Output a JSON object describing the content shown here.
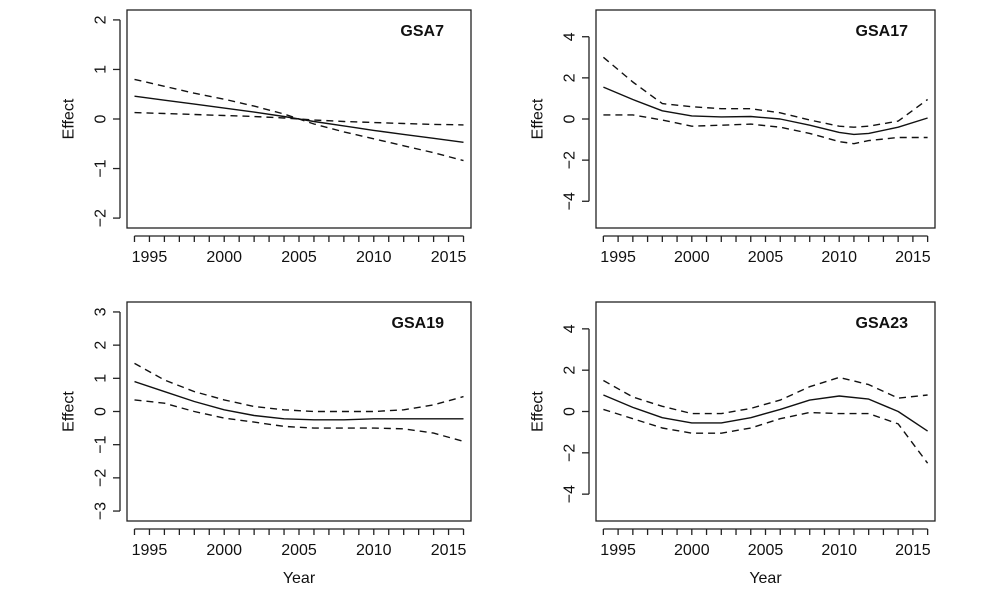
{
  "chart_data": [
    {
      "type": "line",
      "title": "GSA7",
      "xlabel": "",
      "ylabel": "Effect",
      "xlim": [
        1993.5,
        2016.5
      ],
      "ylim": [
        -2.2,
        2.2
      ],
      "xticks": [
        1995,
        2000,
        2005,
        2010,
        2015
      ],
      "yticks": [
        -2,
        -1,
        0,
        1,
        2
      ],
      "minor_xticks": [
        1994,
        1995,
        1996,
        1997,
        1998,
        1999,
        2000,
        2001,
        2002,
        2003,
        2004,
        2005,
        2006,
        2007,
        2008,
        2009,
        2010,
        2011,
        2012,
        2013,
        2014,
        2015,
        2016
      ],
      "x": [
        1994,
        1996,
        1998,
        2000,
        2002,
        2004,
        2005,
        2006,
        2008,
        2010,
        2012,
        2014,
        2016
      ],
      "series": [
        {
          "style": "solid",
          "values": [
            0.46,
            0.38,
            0.3,
            0.22,
            0.14,
            0.05,
            0.0,
            -0.05,
            -0.14,
            -0.23,
            -0.31,
            -0.39,
            -0.47
          ]
        },
        {
          "style": "dashed",
          "values": [
            0.8,
            0.66,
            0.52,
            0.4,
            0.26,
            0.1,
            0.0,
            -0.1,
            -0.26,
            -0.4,
            -0.54,
            -0.68,
            -0.84
          ]
        },
        {
          "style": "dashed",
          "values": [
            0.13,
            0.11,
            0.09,
            0.07,
            0.05,
            0.02,
            0.0,
            -0.02,
            -0.05,
            -0.07,
            -0.09,
            -0.11,
            -0.12
          ]
        }
      ]
    },
    {
      "type": "line",
      "title": "GSA17",
      "xlabel": "",
      "ylabel": "Effect",
      "xlim": [
        1993.5,
        2016.5
      ],
      "ylim": [
        -5.3,
        5.3
      ],
      "xticks": [
        1995,
        2000,
        2005,
        2010,
        2015
      ],
      "yticks": [
        -4,
        -2,
        0,
        2,
        4
      ],
      "minor_xticks": [
        1994,
        1995,
        1996,
        1997,
        1998,
        1999,
        2000,
        2001,
        2002,
        2003,
        2004,
        2005,
        2006,
        2007,
        2008,
        2009,
        2010,
        2011,
        2012,
        2013,
        2014,
        2015,
        2016
      ],
      "x": [
        1994,
        1996,
        1998,
        2000,
        2002,
        2004,
        2006,
        2008,
        2010,
        2011,
        2012,
        2014,
        2016
      ],
      "series": [
        {
          "style": "solid",
          "values": [
            1.55,
            0.95,
            0.4,
            0.15,
            0.1,
            0.12,
            0.0,
            -0.3,
            -0.65,
            -0.75,
            -0.7,
            -0.4,
            0.05
          ]
        },
        {
          "style": "dashed",
          "values": [
            3.0,
            1.8,
            0.75,
            0.6,
            0.5,
            0.5,
            0.3,
            -0.05,
            -0.35,
            -0.4,
            -0.35,
            -0.1,
            0.95
          ]
        },
        {
          "style": "dashed",
          "values": [
            0.2,
            0.2,
            -0.05,
            -0.35,
            -0.3,
            -0.25,
            -0.4,
            -0.7,
            -1.1,
            -1.2,
            -1.05,
            -0.9,
            -0.9
          ]
        }
      ]
    },
    {
      "type": "line",
      "title": "GSA19",
      "xlabel": "Year",
      "ylabel": "Effect",
      "xlim": [
        1993.5,
        2016.5
      ],
      "ylim": [
        -3.3,
        3.3
      ],
      "xticks": [
        1995,
        2000,
        2005,
        2010,
        2015
      ],
      "yticks": [
        -3,
        -2,
        -1,
        0,
        1,
        2,
        3
      ],
      "minor_xticks": [
        1994,
        1995,
        1996,
        1997,
        1998,
        1999,
        2000,
        2001,
        2002,
        2003,
        2004,
        2005,
        2006,
        2007,
        2008,
        2009,
        2010,
        2011,
        2012,
        2013,
        2014,
        2015,
        2016
      ],
      "x": [
        1994,
        1996,
        1998,
        2000,
        2002,
        2004,
        2006,
        2008,
        2010,
        2012,
        2014,
        2016
      ],
      "series": [
        {
          "style": "solid",
          "values": [
            0.9,
            0.6,
            0.3,
            0.05,
            -0.12,
            -0.22,
            -0.25,
            -0.25,
            -0.22,
            -0.22,
            -0.22,
            -0.22
          ]
        },
        {
          "style": "dashed",
          "values": [
            1.45,
            0.95,
            0.6,
            0.35,
            0.15,
            0.05,
            0.0,
            0.0,
            0.0,
            0.05,
            0.2,
            0.45
          ]
        },
        {
          "style": "dashed",
          "values": [
            0.35,
            0.25,
            0.0,
            -0.2,
            -0.32,
            -0.45,
            -0.5,
            -0.5,
            -0.5,
            -0.52,
            -0.65,
            -0.9
          ]
        }
      ]
    },
    {
      "type": "line",
      "title": "GSA23",
      "xlabel": "Year",
      "ylabel": "Effect",
      "xlim": [
        1993.5,
        2016.5
      ],
      "ylim": [
        -5.3,
        5.3
      ],
      "xticks": [
        1995,
        2000,
        2005,
        2010,
        2015
      ],
      "yticks": [
        -4,
        -2,
        0,
        2,
        4
      ],
      "minor_xticks": [
        1994,
        1995,
        1996,
        1997,
        1998,
        1999,
        2000,
        2001,
        2002,
        2003,
        2004,
        2005,
        2006,
        2007,
        2008,
        2009,
        2010,
        2011,
        2012,
        2013,
        2014,
        2015,
        2016
      ],
      "x": [
        1994,
        1996,
        1998,
        2000,
        2002,
        2004,
        2006,
        2008,
        2010,
        2012,
        2014,
        2016
      ],
      "series": [
        {
          "style": "solid",
          "values": [
            0.8,
            0.2,
            -0.3,
            -0.55,
            -0.55,
            -0.3,
            0.1,
            0.55,
            0.75,
            0.6,
            0.0,
            -0.95
          ]
        },
        {
          "style": "dashed",
          "values": [
            1.5,
            0.7,
            0.25,
            -0.1,
            -0.1,
            0.15,
            0.55,
            1.2,
            1.65,
            1.3,
            0.65,
            0.8
          ]
        },
        {
          "style": "dashed",
          "values": [
            0.1,
            -0.35,
            -0.8,
            -1.05,
            -1.05,
            -0.8,
            -0.35,
            -0.05,
            -0.1,
            -0.1,
            -0.6,
            -2.5
          ]
        }
      ]
    }
  ]
}
